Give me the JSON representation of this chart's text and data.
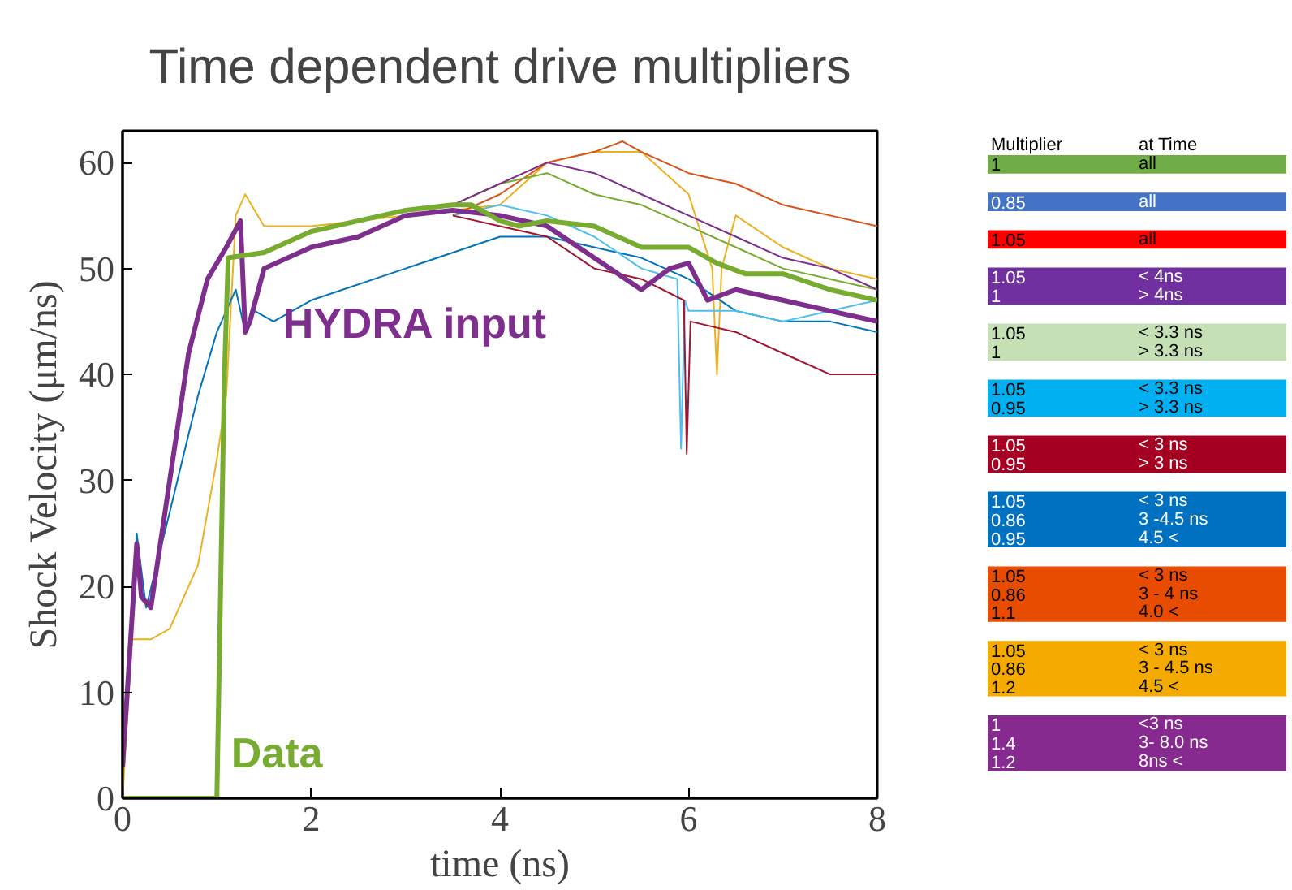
{
  "chart_data": [
    {
      "type": "line",
      "title": "Time dependent drive multipliers",
      "xlabel": "time (ns)",
      "ylabel": "Shock Velocity (μm/ns)",
      "xlim": [
        0,
        8
      ],
      "ylim": [
        0,
        63
      ],
      "xticks": [
        0,
        2,
        4,
        6,
        8
      ],
      "yticks": [
        0,
        10,
        20,
        30,
        40,
        50,
        60
      ],
      "grid": false,
      "marker": "none",
      "line_style": "solid",
      "series": [
        {
          "color": "#edb120",
          "x": [
            0,
            0.1,
            0.3,
            0.5,
            0.8,
            1,
            1.1,
            1.2,
            1.3,
            1.5,
            2,
            3,
            4,
            4.5,
            5,
            5.5,
            6,
            6.25,
            6.3,
            6.35,
            6.5,
            7,
            7.5,
            8
          ],
          "values": [
            0,
            15,
            15,
            16,
            22,
            32,
            38,
            55,
            57,
            54,
            54,
            55,
            56,
            60,
            61,
            61,
            57,
            50,
            40,
            50,
            55,
            52,
            50,
            49
          ]
        },
        {
          "color": "#0072bd",
          "x": [
            0,
            0.15,
            0.25,
            0.5,
            0.8,
            1,
            1.2,
            1.3,
            1.4,
            1.6,
            2,
            3,
            4,
            4.5,
            5,
            5.5,
            6,
            6.5,
            7,
            7.5,
            8
          ],
          "values": [
            3,
            25,
            18,
            27,
            38,
            44,
            48,
            44,
            46,
            45,
            47,
            50,
            53,
            53,
            52,
            51,
            49,
            46,
            45,
            45,
            44
          ]
        },
        {
          "color": "#d95319",
          "x": [
            3.5,
            4,
            4.5,
            5,
            5.3,
            5.5,
            6,
            6.5,
            7,
            7.5,
            8
          ],
          "values": [
            55,
            57,
            60,
            61,
            62,
            61,
            59,
            58,
            56,
            55,
            54
          ]
        },
        {
          "color": "#4dbeee",
          "x": [
            3.5,
            4,
            4.5,
            5,
            5.5,
            5.88,
            5.92,
            5.96,
            6,
            6.5,
            7,
            7.5,
            8
          ],
          "values": [
            55,
            56,
            55,
            53,
            50,
            49,
            33,
            47,
            46,
            46,
            45,
            46,
            47
          ]
        },
        {
          "color": "#a2142f",
          "x": [
            3.5,
            4,
            4.5,
            5,
            5.5,
            5.95,
            5.98,
            6.02,
            6.5,
            7,
            7.5,
            8
          ],
          "values": [
            55,
            54,
            53,
            50,
            49,
            47,
            32.5,
            45,
            44,
            42,
            40,
            40
          ]
        },
        {
          "color": "#77ac30",
          "x": [
            3.5,
            4,
            4.5,
            5,
            5.5,
            6,
            6.5,
            7,
            7.5,
            8
          ],
          "values": [
            56,
            58,
            59,
            57,
            56,
            54,
            52,
            50,
            49,
            48
          ]
        },
        {
          "color": "#7e2f8e",
          "x": [
            3.5,
            4,
            4.5,
            5,
            5.5,
            6,
            6.5,
            7,
            7.5,
            8
          ],
          "values": [
            56,
            58,
            60,
            59,
            57,
            55,
            53,
            51,
            50,
            48
          ]
        },
        {
          "name": "HYDRA input",
          "color": "#7e2f8e",
          "x": [
            0,
            0.15,
            0.2,
            0.3,
            0.5,
            0.7,
            0.9,
            1.1,
            1.25,
            1.3,
            1.35,
            1.5,
            2,
            2.5,
            3,
            3.5,
            4,
            4.5,
            5,
            5.5,
            5.8,
            6,
            6.2,
            6.5,
            7,
            7.5,
            8
          ],
          "values": [
            3,
            24,
            19,
            18,
            30,
            42,
            49,
            52,
            54.5,
            44,
            45,
            50,
            52,
            53,
            55,
            55.5,
            55,
            54,
            51,
            48,
            50,
            50.5,
            47,
            48,
            47,
            46,
            45
          ]
        },
        {
          "name": "Data",
          "color": "#77ac30",
          "x": [
            0,
            1,
            1.02,
            1.08,
            1.12,
            1.5,
            2,
            2.5,
            3,
            3.5,
            3.7,
            4,
            4.2,
            4.5,
            5,
            5.5,
            6,
            6.3,
            6.6,
            7,
            7.5,
            8
          ],
          "values": [
            0,
            0,
            10,
            40,
            51,
            51.5,
            53.5,
            54.5,
            55.5,
            56,
            56,
            54.5,
            54,
            54.5,
            54,
            52,
            52,
            50.5,
            49.5,
            49.5,
            48,
            47
          ]
        }
      ]
    },
    {
      "type": "other",
      "categories": [
        "Multiplier",
        "at Time"
      ],
      "cells": [
        [
          "1",
          "all"
        ],
        [
          "0.85",
          "all"
        ],
        [
          "1.05",
          "all"
        ],
        [
          "1.05",
          "< 4ns"
        ],
        [
          "1",
          "> 4ns"
        ],
        [
          "1.05",
          "< 3.3 ns"
        ],
        [
          "1",
          ">  3.3 ns"
        ],
        [
          "1.05",
          " < 3.3 ns"
        ],
        [
          "0.95",
          "> 3.3 ns"
        ],
        [
          "1.05",
          " < 3 ns"
        ],
        [
          "0.95",
          "> 3 ns"
        ],
        [
          "1.05",
          "< 3 ns"
        ],
        [
          "0.86",
          "3 -4.5 ns"
        ],
        [
          "0.95",
          "4.5 <"
        ],
        [
          "1.05",
          "< 3 ns"
        ],
        [
          "0.86",
          "3 - 4 ns"
        ],
        [
          "1.1",
          "4.0 <"
        ],
        [
          "1.05",
          "< 3 ns"
        ],
        [
          "0.86",
          "3 - 4.5 ns"
        ],
        [
          "1.2",
          "4.5 <"
        ],
        [
          "1",
          "<3 ns"
        ],
        [
          "1.4",
          "3- 8.0 ns"
        ],
        [
          "1.2",
          "8ns <"
        ]
      ],
      "colors": [
        "#70ad47",
        "#4472c4",
        "#ff0000",
        "#7030a0",
        "#7030a0",
        "#c5e0b4",
        "#c5e0b4",
        "#00b0f0",
        "#00b0f0",
        "#a50021",
        "#a50021",
        "#0070c0",
        "#0070c0",
        "#0070c0",
        "#e84c00",
        "#e84c00",
        "#e84c00",
        "#f5aa00",
        "#f5aa00",
        "#f5aa00",
        "#862a90",
        "#862a90",
        "#862a90"
      ]
    }
  ]
}
